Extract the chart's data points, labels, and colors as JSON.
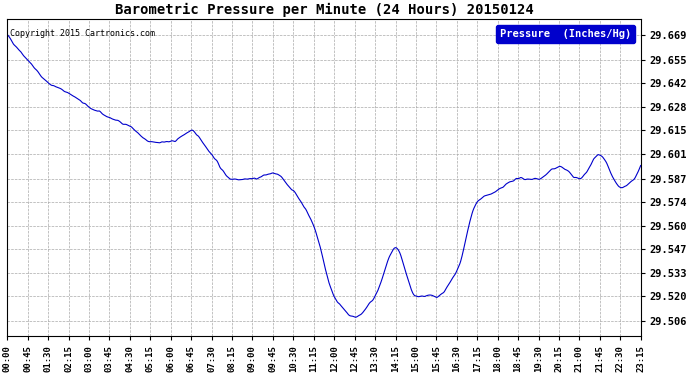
{
  "title": "Barometric Pressure per Minute (24 Hours) 20150124",
  "copyright": "Copyright 2015 Cartronics.com",
  "legend_label": "Pressure  (Inches/Hg)",
  "line_color": "#0000cc",
  "bg_color": "#ffffff",
  "plot_bg_color": "#ffffff",
  "grid_color": "#aaaaaa",
  "yticks": [
    29.506,
    29.52,
    29.533,
    29.547,
    29.56,
    29.574,
    29.587,
    29.601,
    29.615,
    29.628,
    29.642,
    29.655,
    29.669
  ],
  "ylim": [
    29.497,
    29.678
  ],
  "xtick_labels": [
    "00:00",
    "00:45",
    "01:30",
    "02:15",
    "03:00",
    "03:45",
    "04:30",
    "05:15",
    "06:00",
    "06:45",
    "07:30",
    "08:15",
    "09:00",
    "09:45",
    "10:30",
    "11:15",
    "12:00",
    "12:45",
    "13:30",
    "14:15",
    "15:00",
    "15:45",
    "16:30",
    "17:15",
    "18:00",
    "18:45",
    "19:30",
    "20:15",
    "21:00",
    "21:45",
    "22:30",
    "23:15"
  ],
  "pressure_keypoints": {
    "00:00": 29.669,
    "00:45": 29.655,
    "01:30": 29.642,
    "02:15": 29.636,
    "03:00": 29.628,
    "03:45": 29.622,
    "04:30": 29.617,
    "05:15": 29.608,
    "06:00": 29.608,
    "06:45": 29.614,
    "07:30": 29.601,
    "08:15": 29.587,
    "09:00": 29.587,
    "09:45": 29.59,
    "10:30": 29.58,
    "11:15": 29.56,
    "12:00": 29.52,
    "12:45": 29.508,
    "13:30": 29.52,
    "14:15": 29.547,
    "15:00": 29.52,
    "15:45": 29.52,
    "16:30": 29.534,
    "17:15": 29.574,
    "18:00": 29.58,
    "18:45": 29.587,
    "19:30": 29.587,
    "20:15": 29.594,
    "21:00": 29.587,
    "21:45": 29.601,
    "22:30": 29.582,
    "23:15": 29.594
  }
}
